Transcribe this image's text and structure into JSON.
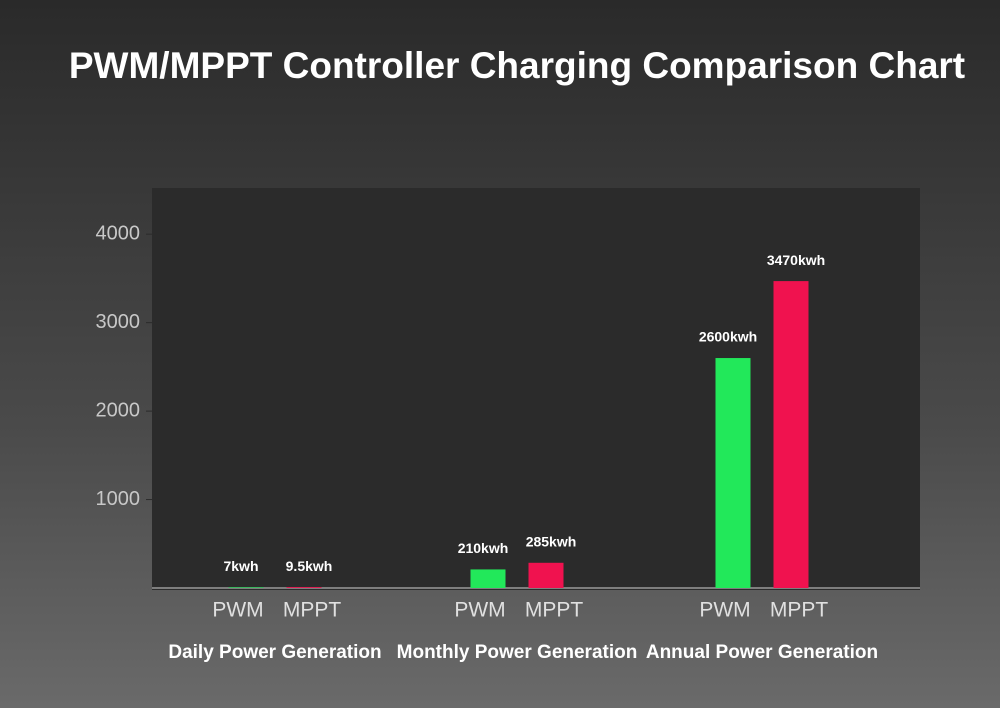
{
  "chart_data": {
    "type": "bar",
    "title": "PWM/MPPT Controller Charging Comparison Chart",
    "categories": [
      "Daily Power Generation",
      "Monthly Power Generation",
      "Annual Power Generation"
    ],
    "series": [
      {
        "name": "PWM",
        "color": "#22e85a",
        "values": [
          7,
          210,
          2600
        ],
        "value_labels": [
          "7kwh",
          "210kwh",
          "2600kwh"
        ]
      },
      {
        "name": "MPPT",
        "color": "#f0124f",
        "values": [
          9.5,
          285,
          3470
        ],
        "value_labels": [
          "9.5kwh",
          "285kwh",
          "3470kwh"
        ]
      }
    ],
    "ylim": [
      0,
      4500
    ],
    "yticks": [
      1000,
      2000,
      3000,
      4000
    ]
  }
}
